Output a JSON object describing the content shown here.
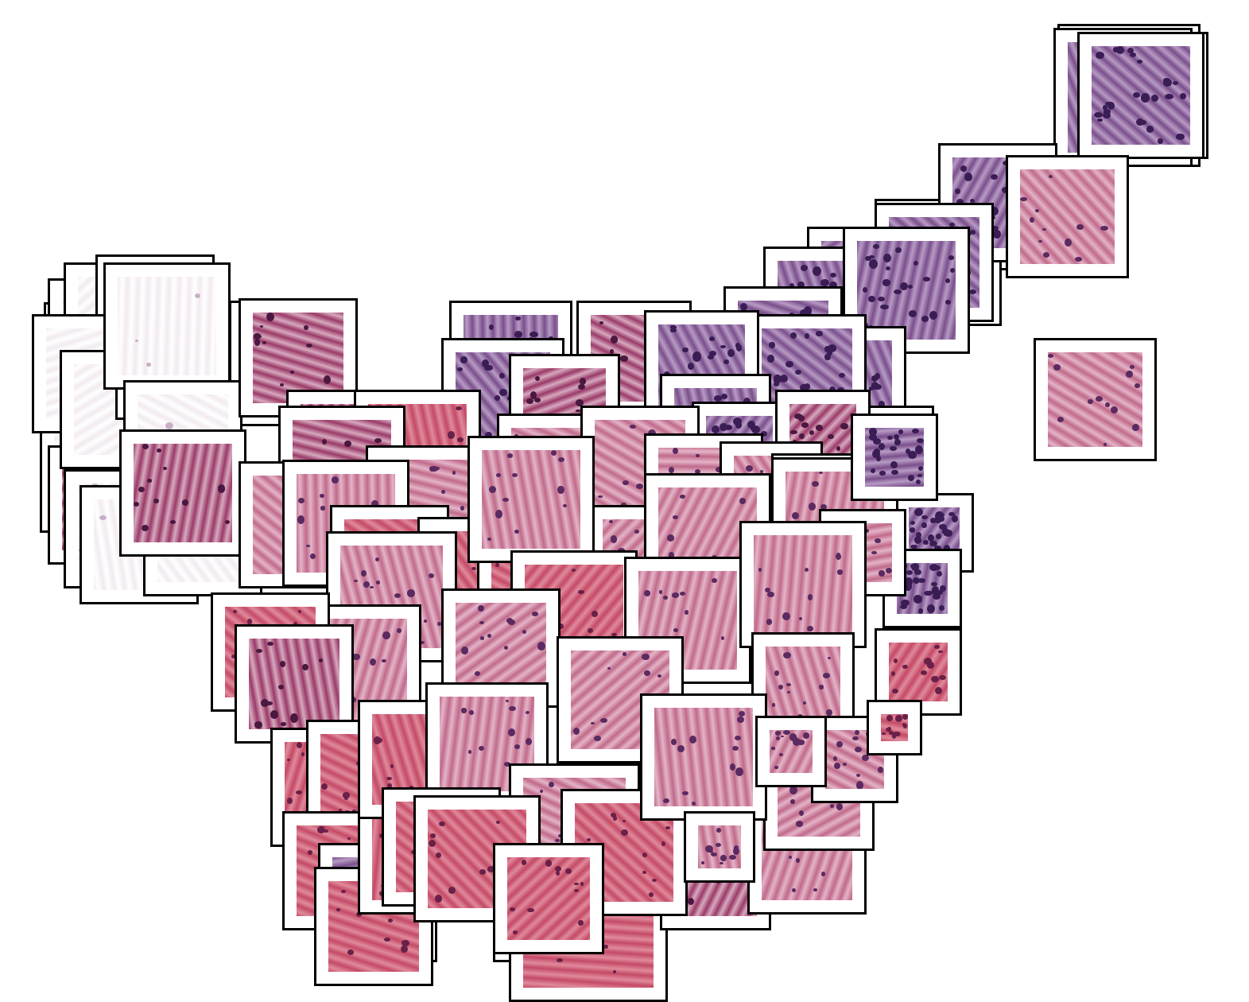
{
  "image": {
    "background": "#ffffff",
    "tile_frame": "#000000",
    "palette": {
      "lymphoid": {
        "base": "#7a4f8c",
        "light": "#b79bc4",
        "nuclei": "#3a1d55"
      },
      "stroma": {
        "base": "#c06a8a",
        "light": "#e4b4c8",
        "nuclei": "#5a2a60"
      },
      "muscle": {
        "base": "#c44a66",
        "light": "#e08a9c",
        "nuclei": "#6a2048"
      },
      "adipose": {
        "base": "#f2eaf0",
        "light": "#ffffff",
        "nuclei": "#c8b0c8"
      },
      "mucosa": {
        "base": "#9a3a68",
        "light": "#d7a9be",
        "nuclei": "#4a1840"
      }
    },
    "tissue_types": [
      "lymphoid",
      "stroma",
      "muscle",
      "adipose",
      "mucosa"
    ]
  }
}
